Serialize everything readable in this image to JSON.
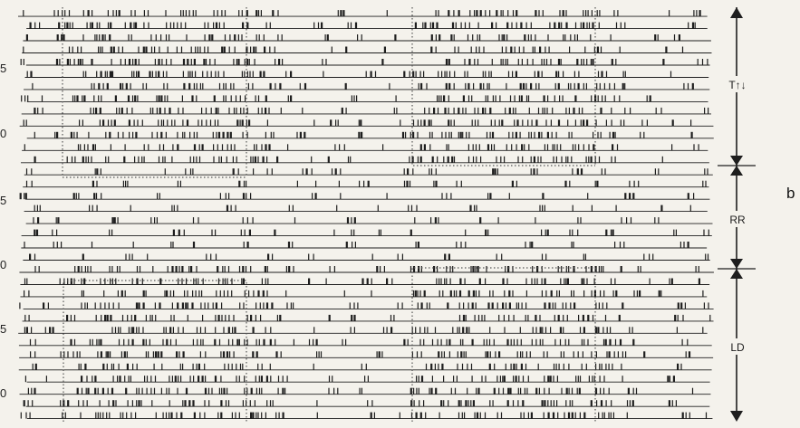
{
  "figure": {
    "panel_label": "b",
    "axis_tick_labels": [
      "5",
      "0",
      "5",
      "0",
      "5",
      "0"
    ],
    "phases": [
      {
        "label": "T↑↓",
        "first_row": 0,
        "last_row": 12
      },
      {
        "label": "RR",
        "first_row": 13,
        "last_row": 20
      },
      {
        "label": "LD",
        "first_row": 21,
        "last_row": 33
      }
    ],
    "rows": 34,
    "colors": {
      "ink": "#1e1e1e",
      "paper": "#f4f2ec",
      "dotted": "#555555"
    }
  }
}
